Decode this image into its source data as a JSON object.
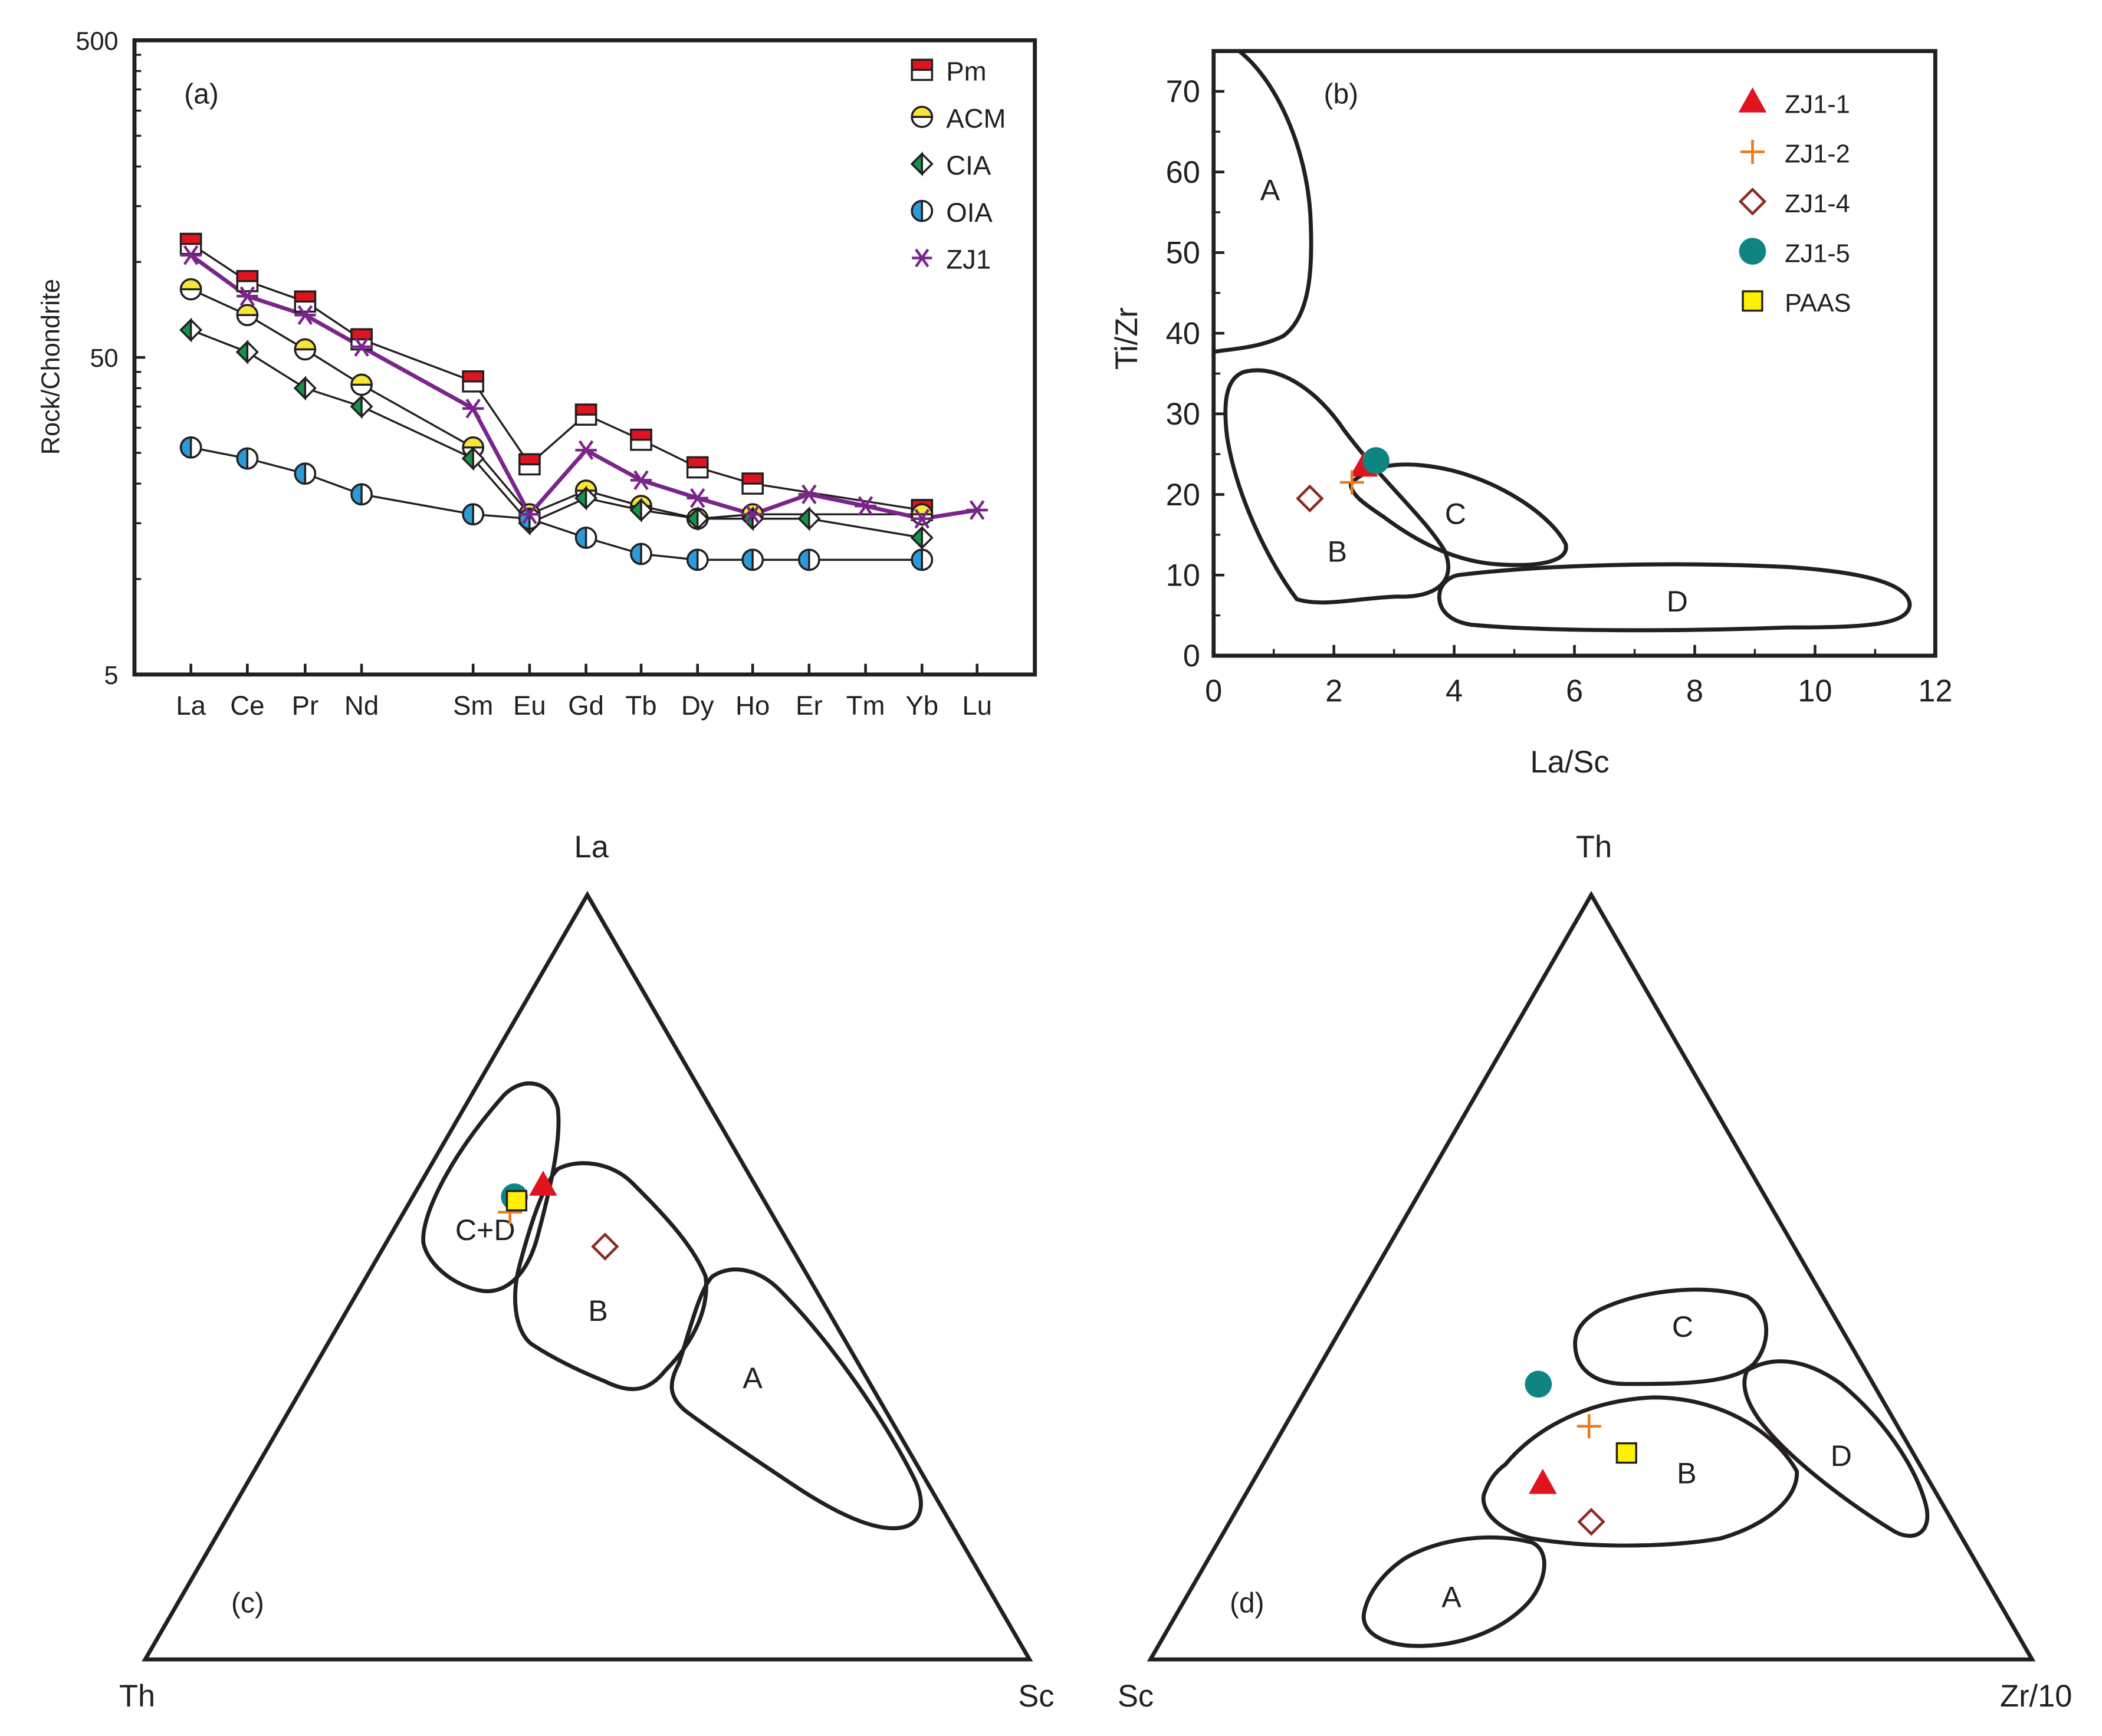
{
  "colors": {
    "ink": "#231f20",
    "pm": "#e0141f",
    "acm": "#f7e53a",
    "cia": "#17924a",
    "oia": "#2d9ad8",
    "zj1": "#7a2589",
    "zj1_1": "#e0141f",
    "zj1_2": "#e87b1e",
    "zj1_4": "#8b2b22",
    "zj1_5": "#0e8580",
    "paas": "#fff200"
  },
  "chart_data": [
    {
      "id": "a",
      "panel_label": "(a)",
      "type": "line",
      "scale": "log",
      "ylabel": "Rock/Chondrite",
      "ylim": [
        5,
        500
      ],
      "yticks": [
        "500",
        "50",
        "5"
      ],
      "categories": [
        "La",
        "Ce",
        "Pr",
        "Nd",
        "Sm",
        "Eu",
        "Gd",
        "Tb",
        "Dy",
        "Ho",
        "Er",
        "Tm",
        "Yb",
        "Lu"
      ],
      "series": [
        {
          "name": "Pm",
          "marker": "half-square",
          "values": [
            114,
            87,
            75,
            57,
            42,
            23,
            33,
            27.5,
            22.5,
            20,
            null,
            null,
            16.5,
            null
          ]
        },
        {
          "name": "ACM",
          "marker": "half-circle",
          "values": [
            82,
            68,
            53,
            41,
            26,
            16,
            19,
            17,
            15.5,
            16,
            null,
            null,
            16,
            null
          ]
        },
        {
          "name": "CIA",
          "marker": "half-diamond",
          "values": [
            61,
            52,
            40,
            35,
            24,
            15,
            18,
            16.5,
            15.5,
            15.5,
            15.5,
            null,
            13.5,
            null
          ]
        },
        {
          "name": "OIA",
          "marker": "half-circle-v",
          "values": [
            26,
            24,
            21.5,
            18.5,
            16,
            15.5,
            13.5,
            12,
            11.5,
            11.5,
            11.5,
            null,
            11.5,
            null
          ]
        },
        {
          "name": "ZJ1",
          "marker": "asterisk",
          "values": [
            105,
            78,
            68,
            54,
            34.5,
            16,
            25.5,
            20.5,
            18,
            16,
            18.5,
            17,
            15.5,
            16.5
          ]
        }
      ]
    },
    {
      "id": "b",
      "panel_label": "(b)",
      "type": "scatter",
      "xlabel": "La/Sc",
      "ylabel": "Ti/Zr",
      "xlim": [
        0,
        12
      ],
      "ylim": [
        0,
        75
      ],
      "xticks": [
        "0",
        "2",
        "4",
        "6",
        "8",
        "10",
        "12"
      ],
      "yticks": [
        "0",
        "10",
        "20",
        "30",
        "40",
        "50",
        "60",
        "70"
      ],
      "fields": [
        "A",
        "B",
        "C",
        "D"
      ],
      "series": [
        {
          "name": "ZJ1-1",
          "marker": "triangle",
          "x": 2.5,
          "y": 23.5
        },
        {
          "name": "ZJ1-2",
          "marker": "plus",
          "x": 2.3,
          "y": 21.5
        },
        {
          "name": "ZJ1-4",
          "marker": "diamond",
          "x": 1.6,
          "y": 19.5
        },
        {
          "name": "ZJ1-5",
          "marker": "circle",
          "x": 2.7,
          "y": 24.2
        },
        {
          "name": "PAAS",
          "marker": "square",
          "x": null,
          "y": null
        }
      ]
    },
    {
      "id": "c",
      "panel_label": "(c)",
      "type": "ternary",
      "apices": {
        "top": "La",
        "left": "Th",
        "right": "Sc"
      },
      "fields": [
        "C+D",
        "B",
        "A"
      ],
      "points": [
        {
          "name": "ZJ1-1",
          "marker": "triangle",
          "top": 0.62,
          "left": 0.24
        },
        {
          "name": "ZJ1-2",
          "marker": "plus",
          "top": 0.585,
          "left": 0.295
        },
        {
          "name": "ZJ1-4",
          "marker": "diamond",
          "top": 0.54,
          "left": 0.21
        },
        {
          "name": "ZJ1-5",
          "marker": "circle",
          "top": 0.605,
          "left": 0.28
        },
        {
          "name": "PAAS",
          "marker": "square",
          "top": 0.6,
          "left": 0.28
        }
      ]
    },
    {
      "id": "d",
      "panel_label": "(d)",
      "type": "ternary",
      "apices": {
        "top": "Th",
        "left": "Sc",
        "right": "Zr/10"
      },
      "fields": [
        "C",
        "B",
        "D",
        "A"
      ],
      "points": [
        {
          "name": "ZJ1-1",
          "marker": "triangle",
          "top": 0.23,
          "left": 0.44
        },
        {
          "name": "ZJ1-2",
          "marker": "plus",
          "top": 0.305,
          "left": 0.35
        },
        {
          "name": "ZJ1-4",
          "marker": "diamond",
          "top": 0.18,
          "left": 0.41
        },
        {
          "name": "ZJ1-5",
          "marker": "circle",
          "top": 0.36,
          "left": 0.38
        },
        {
          "name": "PAAS",
          "marker": "square",
          "top": 0.27,
          "left": 0.325
        }
      ]
    }
  ]
}
